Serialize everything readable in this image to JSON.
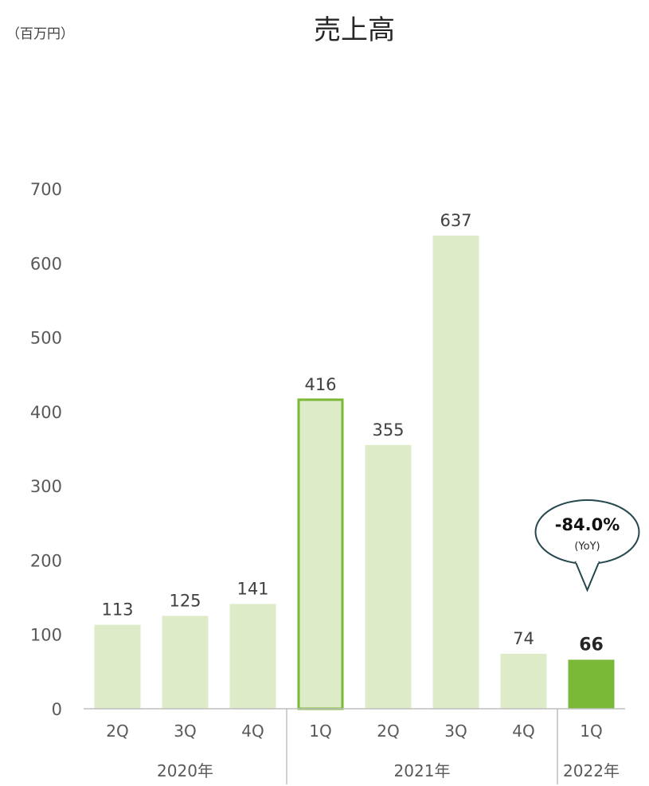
{
  "unit_label": "（百万円）",
  "chart_data": {
    "type": "bar",
    "title": "売上高",
    "ylim": [
      0,
      700
    ],
    "yticks": [
      0,
      100,
      200,
      300,
      400,
      500,
      600,
      700
    ],
    "grid": false,
    "categories": [
      "2Q",
      "3Q",
      "4Q",
      "1Q",
      "2Q",
      "3Q",
      "4Q",
      "1Q"
    ],
    "values": [
      113,
      125,
      141,
      416,
      355,
      637,
      74,
      66
    ],
    "groups": [
      {
        "label": "2020年",
        "start": 0,
        "end": 2
      },
      {
        "label": "2021年",
        "start": 3,
        "end": 6
      },
      {
        "label": "2022年",
        "start": 7,
        "end": 7
      }
    ],
    "highlight_index": 7,
    "outline_index": 3,
    "callout": {
      "value": "-84.0%",
      "sub": "(YoY)",
      "bar_index": 7
    },
    "colors": {
      "bar": "#ddebc9",
      "highlight": "#7ab837",
      "outline": "#7ab837"
    }
  }
}
